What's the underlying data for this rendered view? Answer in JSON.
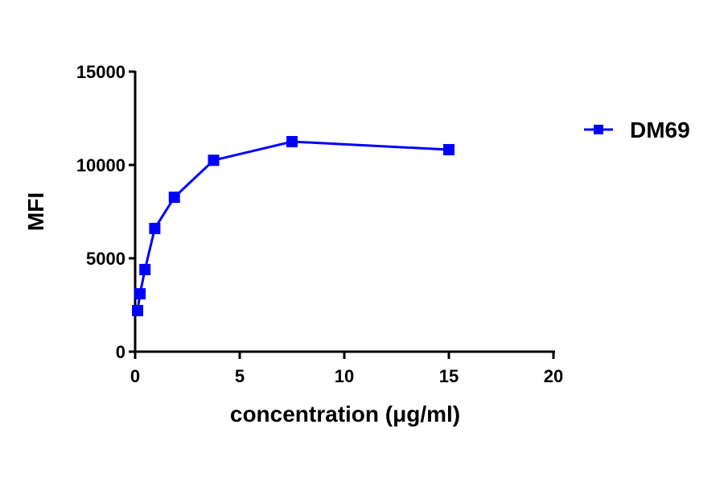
{
  "chart_data": {
    "type": "line",
    "title": "",
    "xlabel": "concentration (μg/ml)",
    "ylabel": "MFI",
    "xlim": [
      0,
      20
    ],
    "ylim": [
      0,
      15000
    ],
    "xticks": [
      0,
      5,
      10,
      15,
      20
    ],
    "yticks": [
      0,
      5000,
      10000,
      15000
    ],
    "grid": false,
    "legend_position": "right",
    "series": [
      {
        "name": "DM69",
        "color": "#0000ff",
        "marker": "square",
        "x": [
          0.117,
          0.234,
          0.469,
          0.938,
          1.875,
          3.75,
          7.5,
          15
        ],
        "y": [
          2200,
          3100,
          4400,
          6600,
          8270,
          10250,
          11250,
          10820
        ]
      }
    ]
  },
  "axis": {
    "x_title": "concentration (μg/ml)",
    "y_title": "MFI",
    "x_tick_labels": [
      "0",
      "5",
      "10",
      "15",
      "20"
    ],
    "y_tick_labels": [
      "0",
      "5000",
      "10000",
      "15000"
    ]
  },
  "legend": {
    "items": [
      {
        "label": "DM69",
        "color": "#0000ff"
      }
    ]
  },
  "colors": {
    "series": "#0000ff",
    "axis": "#000000",
    "background": "#ffffff"
  }
}
